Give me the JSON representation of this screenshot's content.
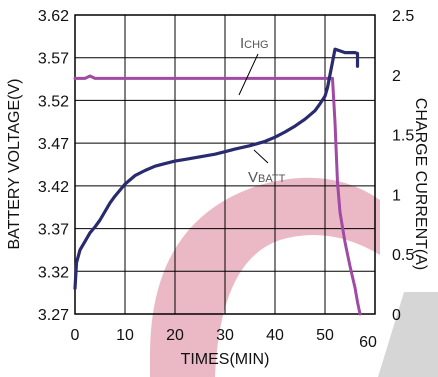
{
  "chart_data": {
    "type": "line",
    "xlabel": "TIMES(MIN)",
    "ylabel_left": "BATTERY VOLTAGE(V)",
    "ylabel_right": "CHARGE CURRENT(A)",
    "xlim": [
      0,
      60
    ],
    "ylim_left": [
      3.27,
      3.62
    ],
    "ylim_right": [
      0,
      2.5
    ],
    "x_ticks": [
      "0",
      "10",
      "20",
      "30",
      "40",
      "50",
      "60"
    ],
    "y_left_ticks": [
      "3.27",
      "3.32",
      "3.37",
      "3.42",
      "3.47",
      "3.52",
      "3.57",
      "3.62"
    ],
    "y_right_ticks": [
      "0",
      "0.5",
      "1",
      "1.5",
      "2",
      "2.5"
    ],
    "grid": true,
    "colors": {
      "vbatt": "#2a2a6e",
      "ichg": "#a04aa4",
      "watermark": "#e6a7b8"
    },
    "series": [
      {
        "name": "VBATT",
        "label_main": "V",
        "label_sub": "BATT",
        "axis": "left",
        "points": [
          [
            0,
            3.3
          ],
          [
            0.3,
            3.33
          ],
          [
            1,
            3.345
          ],
          [
            2,
            3.355
          ],
          [
            3,
            3.365
          ],
          [
            4,
            3.372
          ],
          [
            5,
            3.38
          ],
          [
            6,
            3.39
          ],
          [
            7,
            3.4
          ],
          [
            8,
            3.408
          ],
          [
            9,
            3.415
          ],
          [
            10,
            3.422
          ],
          [
            12,
            3.432
          ],
          [
            14,
            3.438
          ],
          [
            16,
            3.443
          ],
          [
            18,
            3.446
          ],
          [
            20,
            3.449
          ],
          [
            22,
            3.451
          ],
          [
            25,
            3.454
          ],
          [
            28,
            3.457
          ],
          [
            30,
            3.46
          ],
          [
            32,
            3.463
          ],
          [
            35,
            3.467
          ],
          [
            38,
            3.472
          ],
          [
            40,
            3.477
          ],
          [
            42,
            3.483
          ],
          [
            44,
            3.49
          ],
          [
            46,
            3.498
          ],
          [
            48,
            3.508
          ],
          [
            49,
            3.516
          ],
          [
            50,
            3.525
          ],
          [
            50.5,
            3.535
          ],
          [
            51,
            3.55
          ],
          [
            51.5,
            3.565
          ],
          [
            52,
            3.58
          ],
          [
            53,
            3.578
          ],
          [
            54,
            3.576
          ],
          [
            56,
            3.576
          ],
          [
            56.5,
            3.575
          ],
          [
            56.5,
            3.56
          ]
        ]
      },
      {
        "name": "ICHG",
        "label_main": "I",
        "label_sub": "CHG",
        "axis": "right",
        "points": [
          [
            0,
            1.97
          ],
          [
            2,
            1.97
          ],
          [
            3,
            1.99
          ],
          [
            4,
            1.97
          ],
          [
            10,
            1.97
          ],
          [
            20,
            1.97
          ],
          [
            30,
            1.97
          ],
          [
            40,
            1.97
          ],
          [
            50,
            1.97
          ],
          [
            51.5,
            1.97
          ],
          [
            52,
            1.6
          ],
          [
            52.5,
            1.1
          ],
          [
            53,
            0.85
          ],
          [
            54,
            0.6
          ],
          [
            55,
            0.4
          ],
          [
            56,
            0.22
          ],
          [
            56.5,
            0.1
          ],
          [
            57,
            0
          ]
        ]
      }
    ]
  }
}
